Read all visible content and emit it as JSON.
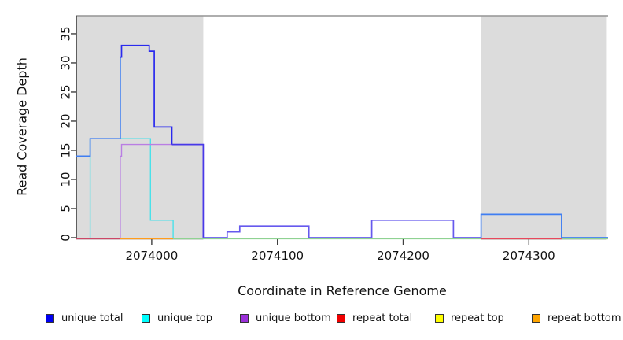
{
  "figure": {
    "xlabel": "Coordinate in Reference Genome",
    "ylabel": "Read Coverage Depth"
  },
  "legend": [
    {
      "label": "unique total",
      "color": "#0000f0"
    },
    {
      "label": "unique top",
      "color": "#00ffff"
    },
    {
      "label": "unique bottom",
      "color": "#9b30d9"
    },
    {
      "label": "repeat total",
      "color": "#f00000"
    },
    {
      "label": "repeat top",
      "color": "#ffff00"
    },
    {
      "label": "repeat bottom",
      "color": "#ffa500"
    }
  ],
  "chart_data": {
    "type": "line",
    "step": true,
    "title": "",
    "xlabel": "Coordinate in Reference Genome",
    "ylabel": "Read Coverage Depth",
    "xlim": [
      2073940,
      2074363
    ],
    "ylim": [
      0,
      38.1
    ],
    "xticks": [
      2074000,
      2074100,
      2074200,
      2074300
    ],
    "yticks": [
      0,
      5,
      10,
      15,
      20,
      25,
      30,
      35
    ],
    "grid": false,
    "legend_position": "bottom",
    "axis_color": "#3f3f3f",
    "top_border_color": "#949494",
    "shaded_regions": [
      {
        "name": "left-repeat-region",
        "x0": 2073940,
        "x1": 2074041,
        "color": "#dcdcdc"
      },
      {
        "name": "right-repeat-region",
        "x0": 2074262,
        "x1": 2074362,
        "color": "#dcdcdc"
      }
    ],
    "series": [
      {
        "name": "unique top",
        "color": "#49e1ea",
        "points": [
          [
            2073951,
            0
          ],
          [
            2073951,
            17
          ],
          [
            2073999,
            17
          ],
          [
            2073999,
            3
          ],
          [
            2074017,
            3
          ],
          [
            2074017,
            0
          ]
        ]
      },
      {
        "name": "unique bottom",
        "color": "#b97ee3",
        "points": [
          [
            2073975,
            0
          ],
          [
            2073975,
            14
          ],
          [
            2073976,
            14
          ],
          [
            2073976,
            16
          ],
          [
            2074041,
            16
          ],
          [
            2074041,
            0
          ]
        ]
      },
      {
        "name": "unique total",
        "segments": [
          {
            "color": "#3f7ef2",
            "points": [
              [
                2073940,
                14
              ],
              [
                2073951,
                14
              ],
              [
                2073951,
                17
              ],
              [
                2073975,
                17
              ],
              [
                2073975,
                31
              ]
            ]
          },
          {
            "color": "#2a2aee",
            "points": [
              [
                2073975,
                31
              ],
              [
                2073976,
                31
              ],
              [
                2073976,
                33
              ],
              [
                2073998,
                33
              ],
              [
                2073998,
                32
              ],
              [
                2074002,
                32
              ],
              [
                2074002,
                19
              ],
              [
                2074016,
                19
              ],
              [
                2074016,
                16
              ]
            ]
          },
          {
            "color": "#4839e8",
            "points": [
              [
                2074016,
                16
              ],
              [
                2074041,
                16
              ],
              [
                2074041,
                0
              ]
            ]
          },
          {
            "color": "#6659ee",
            "points": [
              [
                2074041,
                0
              ],
              [
                2074060,
                0
              ],
              [
                2074060,
                1
              ],
              [
                2074070,
                1
              ],
              [
                2074070,
                2
              ],
              [
                2074125,
                2
              ],
              [
                2074125,
                0
              ],
              [
                2074175,
                0
              ],
              [
                2074175,
                3
              ],
              [
                2074240,
                3
              ],
              [
                2074240,
                0
              ],
              [
                2074262,
                0
              ]
            ]
          },
          {
            "color": "#3f7ef2",
            "points": [
              [
                2074262,
                0
              ],
              [
                2074262,
                4
              ],
              [
                2074326,
                4
              ],
              [
                2074326,
                0
              ],
              [
                2074363,
                0
              ]
            ]
          }
        ]
      }
    ],
    "baseline_segments": [
      {
        "name": "repeat total left at 0",
        "x0": 2073940,
        "x1": 2073975,
        "color": "#cc4766"
      },
      {
        "name": "repeat bottom at 0",
        "x0": 2073975,
        "x1": 2074017,
        "color": "#ff9c1c"
      },
      {
        "name": "top strand baseline at 0",
        "x0": 2074017,
        "x1": 2074363,
        "color": "#8fd292"
      },
      {
        "name": "repeat total right at 0",
        "x0": 2074262,
        "x1": 2074326,
        "color": "#e8485c"
      }
    ]
  }
}
